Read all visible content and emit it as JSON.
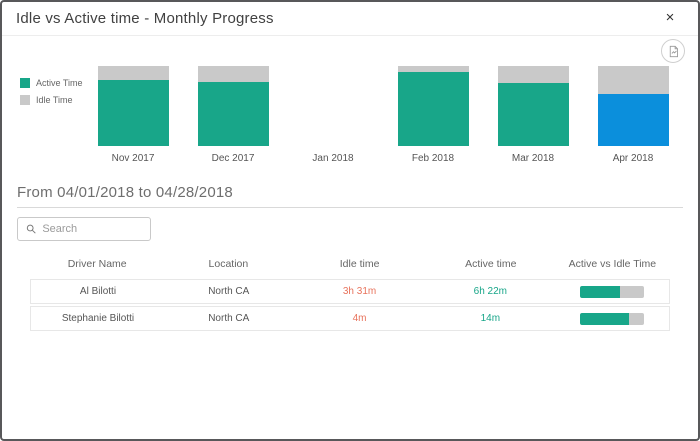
{
  "modal": {
    "title": "Idle vs Active time - Monthly Progress",
    "close_label": "×"
  },
  "toolbar": {
    "export_icon": "export-chart-icon"
  },
  "colors": {
    "active": "#18a689",
    "idle": "#c9c9c9",
    "highlight": "#0b8fdc",
    "idle_text": "#e8735c",
    "active_text": "#18a689"
  },
  "legend": {
    "items": [
      {
        "label": "Active Time",
        "color": "#18a689"
      },
      {
        "label": "Idle Time",
        "color": "#c9c9c9"
      }
    ]
  },
  "chart_data": {
    "type": "bar",
    "stacked": true,
    "orientation": "vertical",
    "categories": [
      "Nov 2017",
      "Dec 2017",
      "Jan 2018",
      "Feb 2018",
      "Mar 2018",
      "Apr 2018"
    ],
    "series": [
      {
        "name": "Active Time",
        "values": [
          83,
          80,
          0,
          93,
          79,
          65
        ],
        "color": "#18a689"
      },
      {
        "name": "Idle Time",
        "values": [
          17,
          20,
          0,
          7,
          21,
          35
        ],
        "color": "#c9c9c9"
      }
    ],
    "value_unit": "percent of month total",
    "highlighted_category": "Apr 2018",
    "highlight_color": "#0b8fdc",
    "title": "Idle vs Active time - Monthly Progress",
    "xlabel": "",
    "ylabel": "",
    "axes_hidden": true,
    "grid": false,
    "legend_position": "left"
  },
  "period": {
    "label": "From 04/01/2018 to 04/28/2018"
  },
  "search": {
    "placeholder": "Search",
    "value": ""
  },
  "table": {
    "columns": [
      "Driver Name",
      "Location",
      "Idle time",
      "Active time",
      "Active vs Idle Time"
    ],
    "rows": [
      {
        "driver": "Al Bilotti",
        "location": "North CA",
        "idle_time": "3h 31m",
        "active_time": "6h 22m",
        "active_pct": 64
      },
      {
        "driver": "Stephanie Bilotti",
        "location": "North CA",
        "idle_time": "4m",
        "active_time": "14m",
        "active_pct": 78
      }
    ]
  }
}
